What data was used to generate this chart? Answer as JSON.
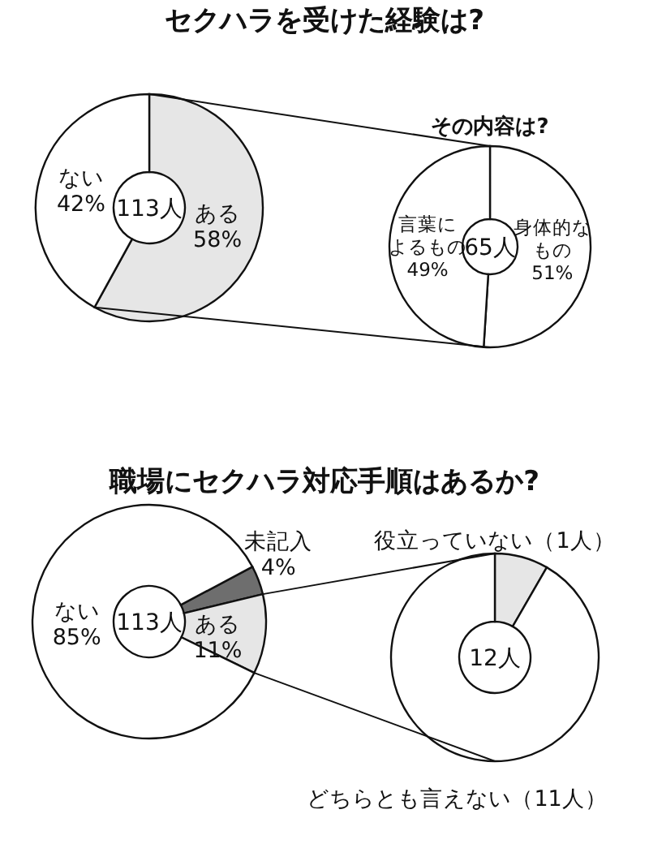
{
  "chart_data": [
    {
      "type": "donut",
      "title": "セクハラを受けた経験は?",
      "categories": [
        "ある",
        "ない"
      ],
      "values": [
        58,
        42
      ],
      "colors": [
        "#e6e6e6",
        "#ffffff"
      ],
      "value_labels": [
        "58%",
        "42%"
      ],
      "annotations": [
        "113人"
      ]
    },
    {
      "type": "donut",
      "title": "その内容は?",
      "categories": [
        "身体的なもの",
        "言葉によるもの"
      ],
      "values": [
        51,
        49
      ],
      "colors": [
        "#ffffff",
        "#ffffff"
      ],
      "value_labels": [
        "51%",
        "49%"
      ],
      "annotations": [
        "65人"
      ]
    },
    {
      "type": "donut",
      "title": "職場にセクハラ対応手順はあるか?",
      "categories": [
        "未記入",
        "ある",
        "ない"
      ],
      "values": [
        4,
        11,
        85
      ],
      "colors": [
        "#6e6e6e",
        "#e6e6e6",
        "#ffffff"
      ],
      "value_labels": [
        "4%",
        "11%",
        "85%"
      ],
      "annotations": [
        "113人"
      ]
    },
    {
      "type": "donut",
      "categories": [
        "役立っていない",
        "どちらとも言えない"
      ],
      "values": [
        1,
        11
      ],
      "colors": [
        "#e6e6e6",
        "#ffffff"
      ],
      "value_labels": [
        "（1人）",
        "（11人）"
      ],
      "annotations": [
        "12人"
      ]
    }
  ]
}
